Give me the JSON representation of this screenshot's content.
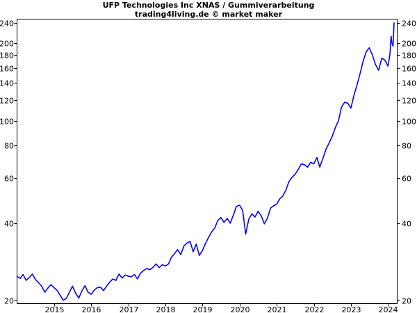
{
  "chart_data": {
    "type": "line",
    "title": "UFP Technologies Inc XNAS / Gummiverarbeitung",
    "subtitle": "trading4living.de © market maker",
    "xlabel": "",
    "ylabel": "",
    "y_scale": "log",
    "ylim": [
      19.5,
      248
    ],
    "xlim": [
      "2014-01-01",
      "2024-04-01"
    ],
    "grid": false,
    "legend": "none",
    "line_color": "#0000ff",
    "y_ticks": [
      20,
      40,
      60,
      80,
      100,
      120,
      140,
      160,
      180,
      200,
      240
    ],
    "x_ticks": [
      {
        "label": "2015",
        "date": "2015-01-01"
      },
      {
        "label": "2016",
        "date": "2016-01-01"
      },
      {
        "label": "2017",
        "date": "2017-01-01"
      },
      {
        "label": "2018",
        "date": "2018-01-01"
      },
      {
        "label": "2019",
        "date": "2019-01-01"
      },
      {
        "label": "2020",
        "date": "2020-01-01"
      },
      {
        "label": "2021",
        "date": "2021-01-01"
      },
      {
        "label": "2022",
        "date": "2022-01-01"
      },
      {
        "label": "2023",
        "date": "2023-01-01"
      },
      {
        "label": "2024",
        "date": "2024-01-01"
      }
    ],
    "series": [
      {
        "points": [
          [
            "2014-01-01",
            24.9
          ],
          [
            "2014-02-01",
            24.4
          ],
          [
            "2014-03-01",
            25.3
          ],
          [
            "2014-04-01",
            24.0
          ],
          [
            "2014-05-01",
            24.6
          ],
          [
            "2014-06-01",
            25.4
          ],
          [
            "2014-07-01",
            24.2
          ],
          [
            "2014-08-01",
            23.5
          ],
          [
            "2014-09-01",
            22.8
          ],
          [
            "2014-10-01",
            21.6
          ],
          [
            "2014-11-01",
            22.4
          ],
          [
            "2014-12-01",
            23.1
          ],
          [
            "2015-01-01",
            22.5
          ],
          [
            "2015-02-01",
            21.9
          ],
          [
            "2015-03-01",
            21.0
          ],
          [
            "2015-04-01",
            20.1
          ],
          [
            "2015-05-01",
            20.4
          ],
          [
            "2015-06-01",
            21.6
          ],
          [
            "2015-07-01",
            22.8
          ],
          [
            "2015-08-01",
            21.4
          ],
          [
            "2015-09-01",
            20.5
          ],
          [
            "2015-10-01",
            21.8
          ],
          [
            "2015-11-01",
            22.9
          ],
          [
            "2015-12-01",
            21.6
          ],
          [
            "2016-01-01",
            21.2
          ],
          [
            "2016-02-01",
            22.0
          ],
          [
            "2016-03-01",
            22.5
          ],
          [
            "2016-04-01",
            22.6
          ],
          [
            "2016-05-01",
            21.9
          ],
          [
            "2016-06-01",
            22.8
          ],
          [
            "2016-07-01",
            23.6
          ],
          [
            "2016-08-01",
            24.3
          ],
          [
            "2016-09-01",
            24.0
          ],
          [
            "2016-10-01",
            25.4
          ],
          [
            "2016-11-01",
            24.5
          ],
          [
            "2016-12-01",
            25.2
          ],
          [
            "2017-01-01",
            24.9
          ],
          [
            "2017-02-01",
            24.8
          ],
          [
            "2017-03-01",
            25.3
          ],
          [
            "2017-04-01",
            24.3
          ],
          [
            "2017-05-01",
            25.6
          ],
          [
            "2017-06-01",
            26.2
          ],
          [
            "2017-07-01",
            26.7
          ],
          [
            "2017-08-01",
            26.4
          ],
          [
            "2017-09-01",
            27.0
          ],
          [
            "2017-10-01",
            27.8
          ],
          [
            "2017-11-01",
            26.9
          ],
          [
            "2017-12-01",
            27.6
          ],
          [
            "2018-01-01",
            27.3
          ],
          [
            "2018-02-01",
            27.8
          ],
          [
            "2018-03-01",
            29.5
          ],
          [
            "2018-04-01",
            30.5
          ],
          [
            "2018-05-01",
            31.6
          ],
          [
            "2018-06-01",
            30.2
          ],
          [
            "2018-07-01",
            32.6
          ],
          [
            "2018-08-01",
            33.5
          ],
          [
            "2018-09-01",
            34.0
          ],
          [
            "2018-10-01",
            31.0
          ],
          [
            "2018-11-01",
            33.2
          ],
          [
            "2018-12-01",
            30.0
          ],
          [
            "2019-01-01",
            31.4
          ],
          [
            "2019-02-01",
            33.5
          ],
          [
            "2019-03-01",
            35.2
          ],
          [
            "2019-04-01",
            37.0
          ],
          [
            "2019-05-01",
            38.3
          ],
          [
            "2019-06-01",
            41.0
          ],
          [
            "2019-07-01",
            42.1
          ],
          [
            "2019-08-01",
            40.3
          ],
          [
            "2019-09-01",
            41.8
          ],
          [
            "2019-10-01",
            40.0
          ],
          [
            "2019-11-01",
            43.0
          ],
          [
            "2019-12-01",
            46.5
          ],
          [
            "2020-01-01",
            47.0
          ],
          [
            "2020-02-01",
            44.8
          ],
          [
            "2020-03-01",
            36.3
          ],
          [
            "2020-04-01",
            41.5
          ],
          [
            "2020-05-01",
            43.5
          ],
          [
            "2020-06-01",
            42.3
          ],
          [
            "2020-07-01",
            44.5
          ],
          [
            "2020-08-01",
            42.8
          ],
          [
            "2020-09-01",
            39.8
          ],
          [
            "2020-10-01",
            41.8
          ],
          [
            "2020-11-01",
            45.8
          ],
          [
            "2020-12-01",
            46.7
          ],
          [
            "2021-01-01",
            47.5
          ],
          [
            "2021-02-01",
            49.8
          ],
          [
            "2021-03-01",
            51.0
          ],
          [
            "2021-04-01",
            53.7
          ],
          [
            "2021-05-01",
            58.0
          ],
          [
            "2021-06-01",
            60.3
          ],
          [
            "2021-07-01",
            62.0
          ],
          [
            "2021-08-01",
            64.8
          ],
          [
            "2021-09-01",
            68.0
          ],
          [
            "2021-10-01",
            67.5
          ],
          [
            "2021-11-01",
            66.0
          ],
          [
            "2021-12-01",
            69.0
          ],
          [
            "2022-01-01",
            68.0
          ],
          [
            "2022-02-01",
            72.0
          ],
          [
            "2022-03-01",
            66.0
          ],
          [
            "2022-04-01",
            71.5
          ],
          [
            "2022-05-01",
            77.5
          ],
          [
            "2022-06-01",
            82.0
          ],
          [
            "2022-07-01",
            87.0
          ],
          [
            "2022-08-01",
            94.0
          ],
          [
            "2022-09-01",
            100.0
          ],
          [
            "2022-10-01",
            113.0
          ],
          [
            "2022-11-01",
            118.0
          ],
          [
            "2022-12-01",
            117.0
          ],
          [
            "2023-01-01",
            112.0
          ],
          [
            "2023-02-01",
            126.0
          ],
          [
            "2023-03-01",
            137.0
          ],
          [
            "2023-04-01",
            152.0
          ],
          [
            "2023-05-01",
            170.0
          ],
          [
            "2023-06-01",
            185.0
          ],
          [
            "2023-07-01",
            192.0
          ],
          [
            "2023-08-01",
            180.0
          ],
          [
            "2023-09-01",
            165.0
          ],
          [
            "2023-10-01",
            157.0
          ],
          [
            "2023-11-01",
            175.0
          ],
          [
            "2023-12-01",
            172.0
          ],
          [
            "2024-01-01",
            163.0
          ],
          [
            "2024-01-20",
            180.0
          ],
          [
            "2024-02-01",
            213.0
          ],
          [
            "2024-02-10",
            200.0
          ],
          [
            "2024-02-20",
            195.0
          ],
          [
            "2024-03-01",
            240.0
          ]
        ]
      }
    ]
  }
}
